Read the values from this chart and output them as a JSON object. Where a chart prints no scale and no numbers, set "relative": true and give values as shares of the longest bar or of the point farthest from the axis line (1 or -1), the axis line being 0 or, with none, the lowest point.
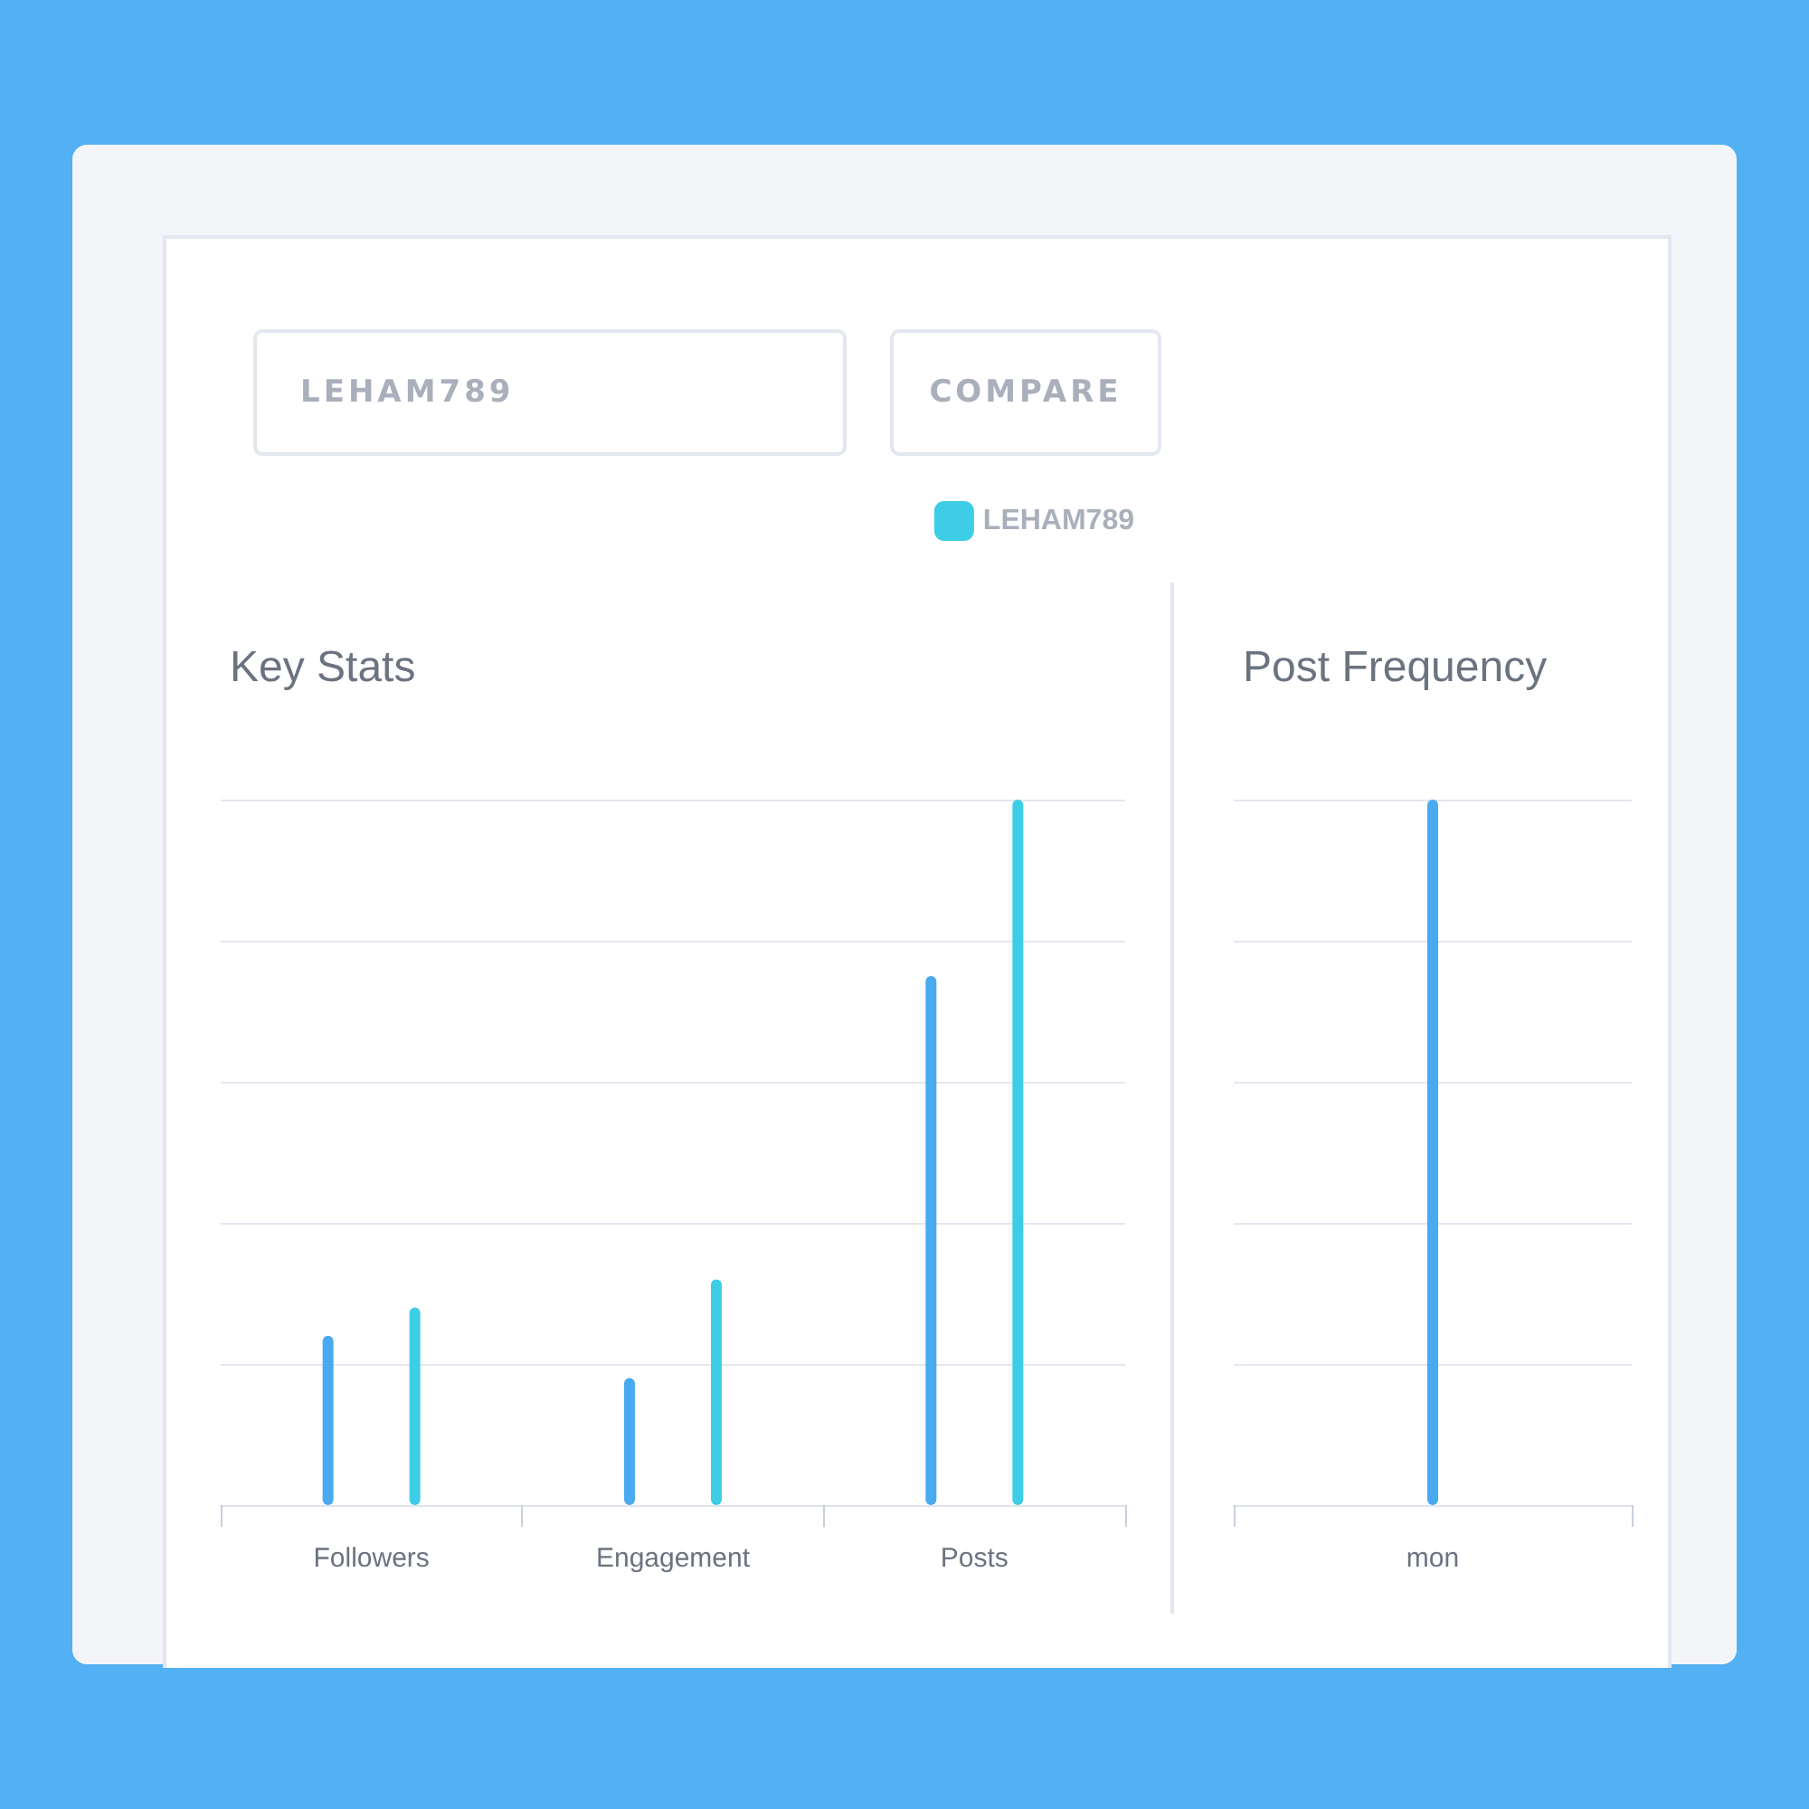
{
  "chart_data": [
    {
      "type": "other",
      "annotations": [
        "LEHAM789",
        "COMPARE"
      ]
    },
    {
      "type": "bar",
      "title": "Key Stats",
      "categories": [
        "Followers",
        "Engagement",
        "Posts"
      ],
      "relative": true,
      "grid": true,
      "legend": "top right",
      "series": [
        {
          "color": "#4aaaf0",
          "values": [
            0.24,
            0.18,
            0.75
          ]
        },
        {
          "name": "LEHAM789",
          "color": "#3ecde6",
          "values": [
            0.28,
            0.32,
            1
          ]
        }
      ]
    },
    {
      "type": "bar",
      "title": "Post Frequency",
      "categories": [
        "mon"
      ],
      "relative": true,
      "grid": true,
      "series": [
        {
          "color": "#4aaaf0",
          "values": [
            1
          ]
        }
      ]
    }
  ]
}
